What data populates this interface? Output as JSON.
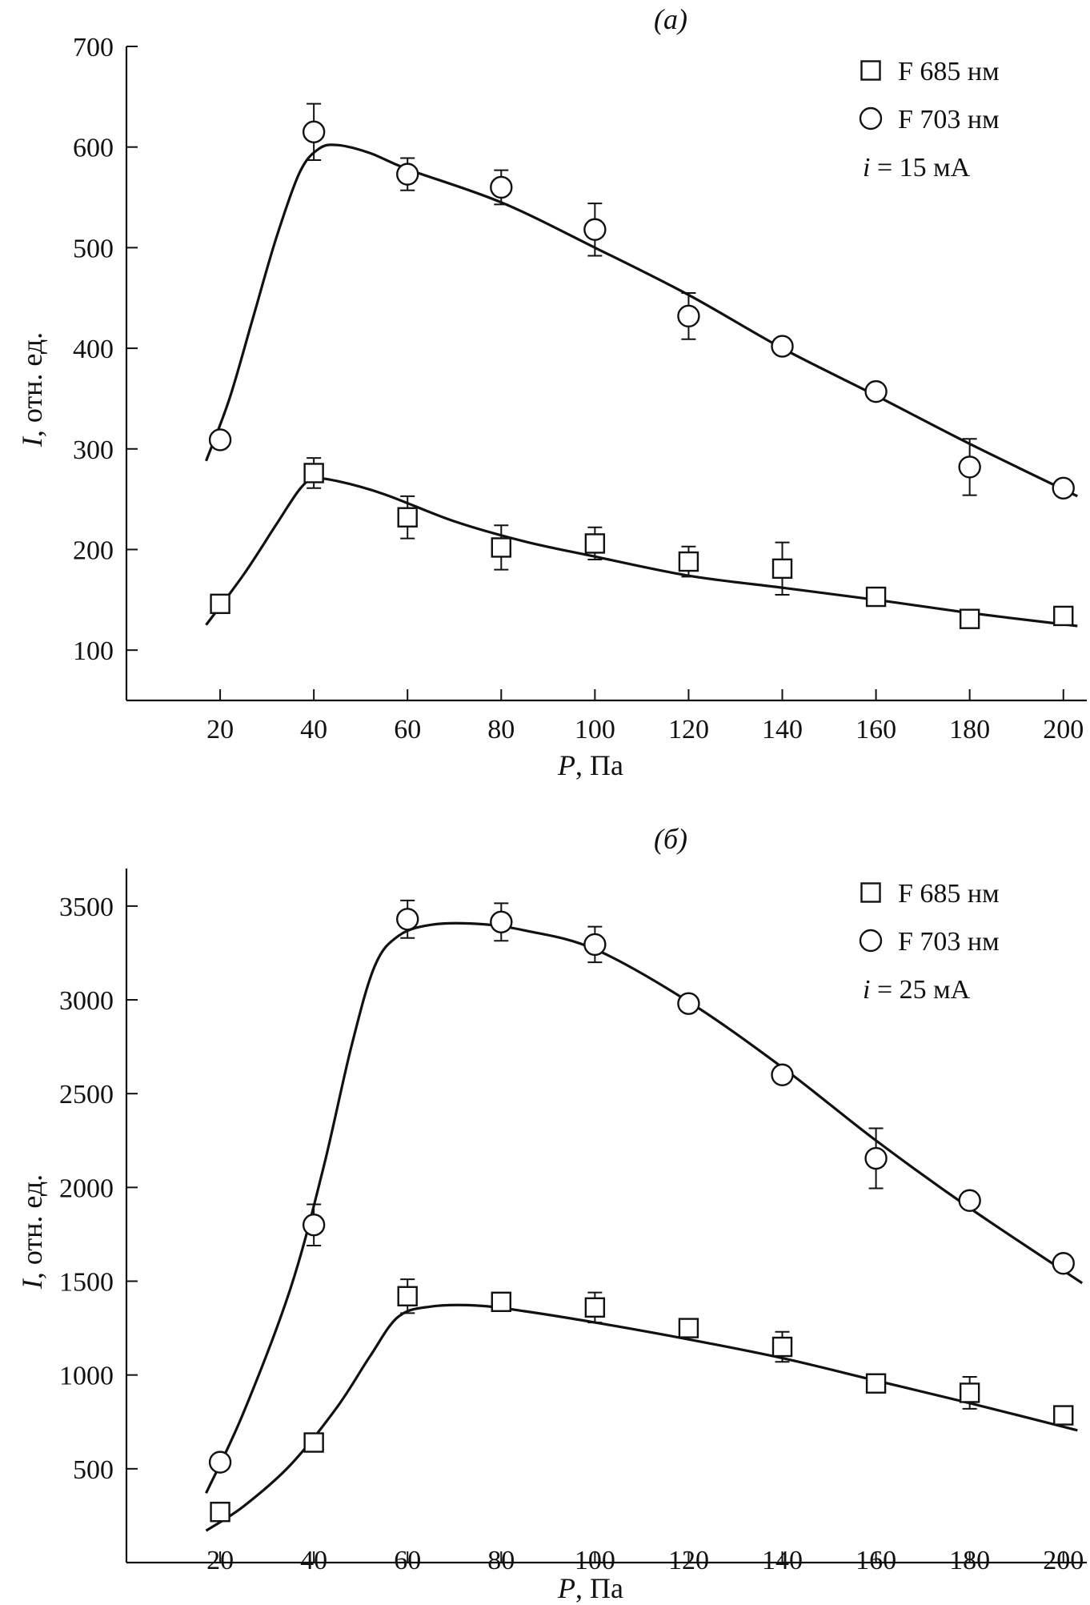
{
  "chart_data": [
    {
      "type": "scatter",
      "title": "(a)",
      "xlabel_symbol": "P",
      "xlabel_unit": ", Па",
      "ylabel_symbol": "I",
      "ylabel_unit": ", отн. ед.",
      "xlim": [
        0,
        205
      ],
      "ylim": [
        50,
        700
      ],
      "xticks": [
        20,
        40,
        60,
        80,
        100,
        120,
        140,
        160,
        180,
        200
      ],
      "yticks": [
        100,
        200,
        300,
        400,
        500,
        600,
        700
      ],
      "legend": {
        "position": "top-right",
        "entries": [
          {
            "marker": "square",
            "label": "F 685 нм"
          },
          {
            "marker": "circle",
            "label": "F 703 нм"
          }
        ],
        "current_symbol": "i",
        "current_text": " = 15 мА"
      },
      "series": [
        {
          "name": "F 685 нм",
          "marker": "square",
          "x": [
            20,
            40,
            60,
            80,
            100,
            120,
            140,
            160,
            180,
            200
          ],
          "y": [
            146,
            276,
            232,
            202,
            206,
            188,
            181,
            153,
            131,
            134
          ],
          "err": [
            0,
            15,
            21,
            22,
            16,
            15,
            26,
            0,
            0,
            0
          ],
          "fit": [
            [
              17,
              125
            ],
            [
              25,
              175
            ],
            [
              32,
              225
            ],
            [
              37,
              260
            ],
            [
              40,
              270
            ],
            [
              45,
              268
            ],
            [
              55,
              255
            ],
            [
              70,
              228
            ],
            [
              85,
              208
            ],
            [
              100,
              193
            ],
            [
              120,
              174
            ],
            [
              140,
              162
            ],
            [
              160,
              150
            ],
            [
              180,
              137
            ],
            [
              203,
              124
            ]
          ]
        },
        {
          "name": "F 703 нм",
          "marker": "circle",
          "x": [
            20,
            40,
            60,
            80,
            100,
            120,
            140,
            160,
            180,
            200
          ],
          "y": [
            309,
            615,
            573,
            560,
            518,
            432,
            402,
            357,
            282,
            261
          ],
          "err": [
            0,
            28,
            16,
            17,
            26,
            23,
            0,
            0,
            28,
            0
          ],
          "fit": [
            [
              17,
              288
            ],
            [
              22,
              350
            ],
            [
              27,
              430
            ],
            [
              32,
              510
            ],
            [
              37,
              575
            ],
            [
              41,
              598
            ],
            [
              45,
              602
            ],
            [
              52,
              594
            ],
            [
              60,
              578
            ],
            [
              80,
              545
            ],
            [
              100,
              500
            ],
            [
              120,
              453
            ],
            [
              140,
              400
            ],
            [
              160,
              353
            ],
            [
              180,
              305
            ],
            [
              203,
              253
            ]
          ]
        }
      ]
    },
    {
      "type": "scatter",
      "title": "(б)",
      "xlabel_symbol": "P",
      "xlabel_unit": ", Па",
      "ylabel_symbol": "I",
      "ylabel_unit": ", отн. ед.",
      "xlim": [
        0,
        205
      ],
      "ylim": [
        0,
        3700
      ],
      "xticks": [
        20,
        40,
        60,
        80,
        100,
        120,
        140,
        160,
        180,
        200
      ],
      "yticks": [
        500,
        1000,
        1500,
        2000,
        2500,
        3000,
        3500
      ],
      "legend": {
        "position": "top-right",
        "entries": [
          {
            "marker": "square",
            "label": "F 685 нм"
          },
          {
            "marker": "circle",
            "label": "F 703 нм"
          }
        ],
        "current_symbol": "i",
        "current_text": " = 25 мА"
      },
      "series": [
        {
          "name": "F 685 нм",
          "marker": "square",
          "x": [
            20,
            40,
            60,
            80,
            100,
            120,
            140,
            160,
            180,
            200
          ],
          "y": [
            270,
            640,
            1420,
            1390,
            1360,
            1250,
            1150,
            955,
            905,
            785
          ],
          "err": [
            0,
            0,
            90,
            0,
            80,
            0,
            80,
            0,
            85,
            0
          ],
          "fit": [
            [
              17,
              170
            ],
            [
              25,
              300
            ],
            [
              35,
              520
            ],
            [
              45,
              830
            ],
            [
              52,
              1100
            ],
            [
              58,
              1310
            ],
            [
              65,
              1365
            ],
            [
              75,
              1370
            ],
            [
              85,
              1340
            ],
            [
              100,
              1280
            ],
            [
              120,
              1190
            ],
            [
              140,
              1090
            ],
            [
              160,
              970
            ],
            [
              180,
              850
            ],
            [
              203,
              705
            ]
          ]
        },
        {
          "name": "F 703 нм",
          "marker": "circle",
          "x": [
            20,
            40,
            60,
            80,
            100,
            120,
            140,
            160,
            180,
            200
          ],
          "y": [
            535,
            1800,
            3430,
            3415,
            3295,
            2980,
            2600,
            2155,
            1930,
            1595
          ],
          "err": [
            0,
            110,
            100,
            100,
            95,
            0,
            0,
            160,
            0,
            0
          ],
          "fit": [
            [
              17,
              370
            ],
            [
              25,
              800
            ],
            [
              35,
              1460
            ],
            [
              42,
              2100
            ],
            [
              48,
              2750
            ],
            [
              53,
              3180
            ],
            [
              58,
              3340
            ],
            [
              65,
              3400
            ],
            [
              75,
              3405
            ],
            [
              85,
              3370
            ],
            [
              100,
              3270
            ],
            [
              120,
              2990
            ],
            [
              140,
              2640
            ],
            [
              160,
              2250
            ],
            [
              180,
              1890
            ],
            [
              204,
              1490
            ]
          ]
        }
      ]
    }
  ]
}
